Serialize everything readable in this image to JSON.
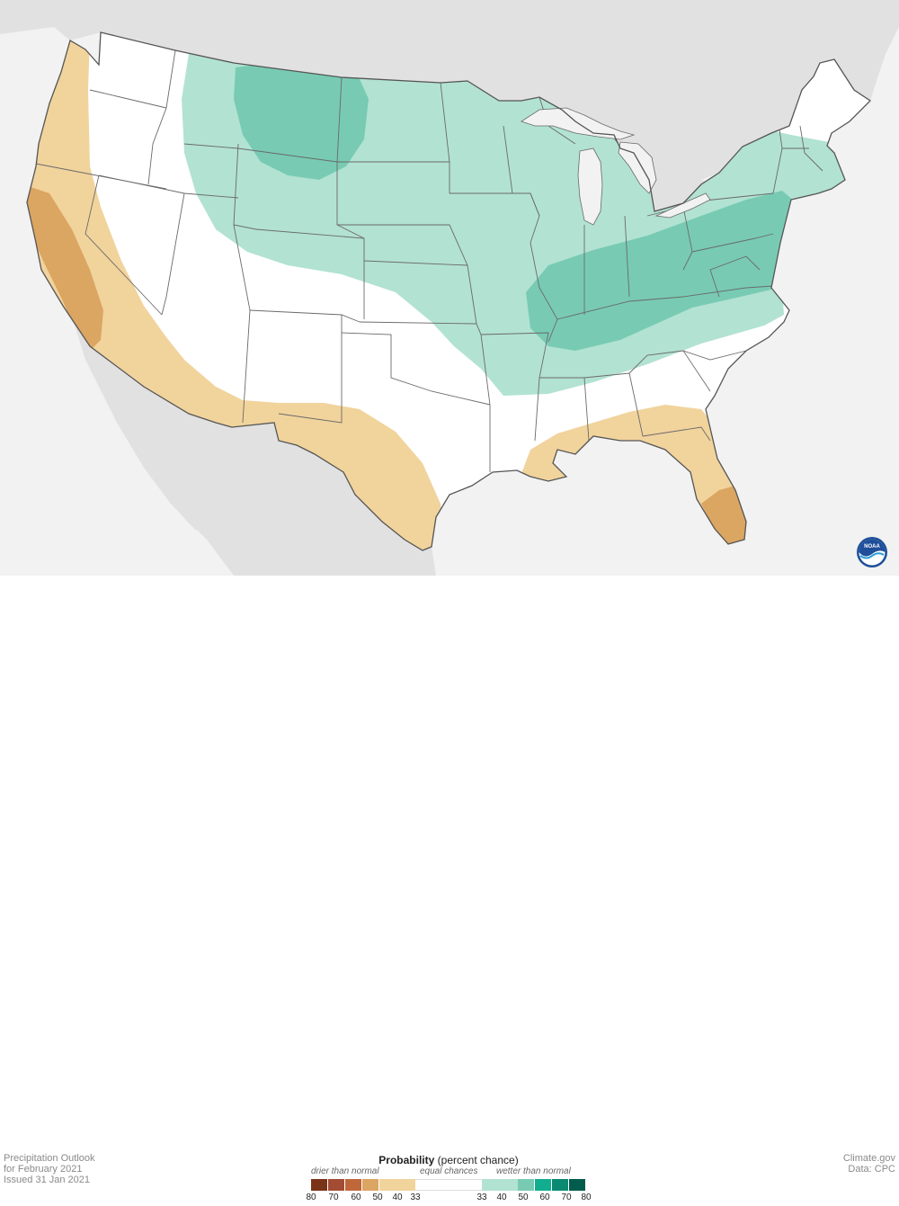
{
  "outlook": {
    "line1": "Precipitation Outlook",
    "line2": "for February 2021",
    "line3": "Issued 31 Jan 2021"
  },
  "credits": {
    "line1": "Climate.gov",
    "line2": "Data: CPC"
  },
  "legend": {
    "title_bold": "Probability",
    "title_rest": " (percent chance)",
    "drier": "drier than normal",
    "equal": "equal chances",
    "wetter": "wetter than normal",
    "ticks": [
      "80",
      "70",
      "60",
      "50",
      "40",
      "33",
      "33",
      "40",
      "50",
      "60",
      "70",
      "80"
    ],
    "colors": {
      "dry80": "#7b3318",
      "dry70": "#a24c34",
      "dry60": "#c0673a",
      "dry50": "#dba562",
      "dry40": "#f1d39c",
      "equal": "#ffffff",
      "wet40": "#b2e2d2",
      "wet50": "#78cbb2",
      "wet60": "#12ad8f",
      "wet70": "#0a8a72",
      "wet80": "#005c4c"
    }
  },
  "map": {
    "background": "#f2f2f2",
    "land_outside": "#e1e1e1",
    "logo": "noaa-logo",
    "logo_text": "NOAA"
  }
}
